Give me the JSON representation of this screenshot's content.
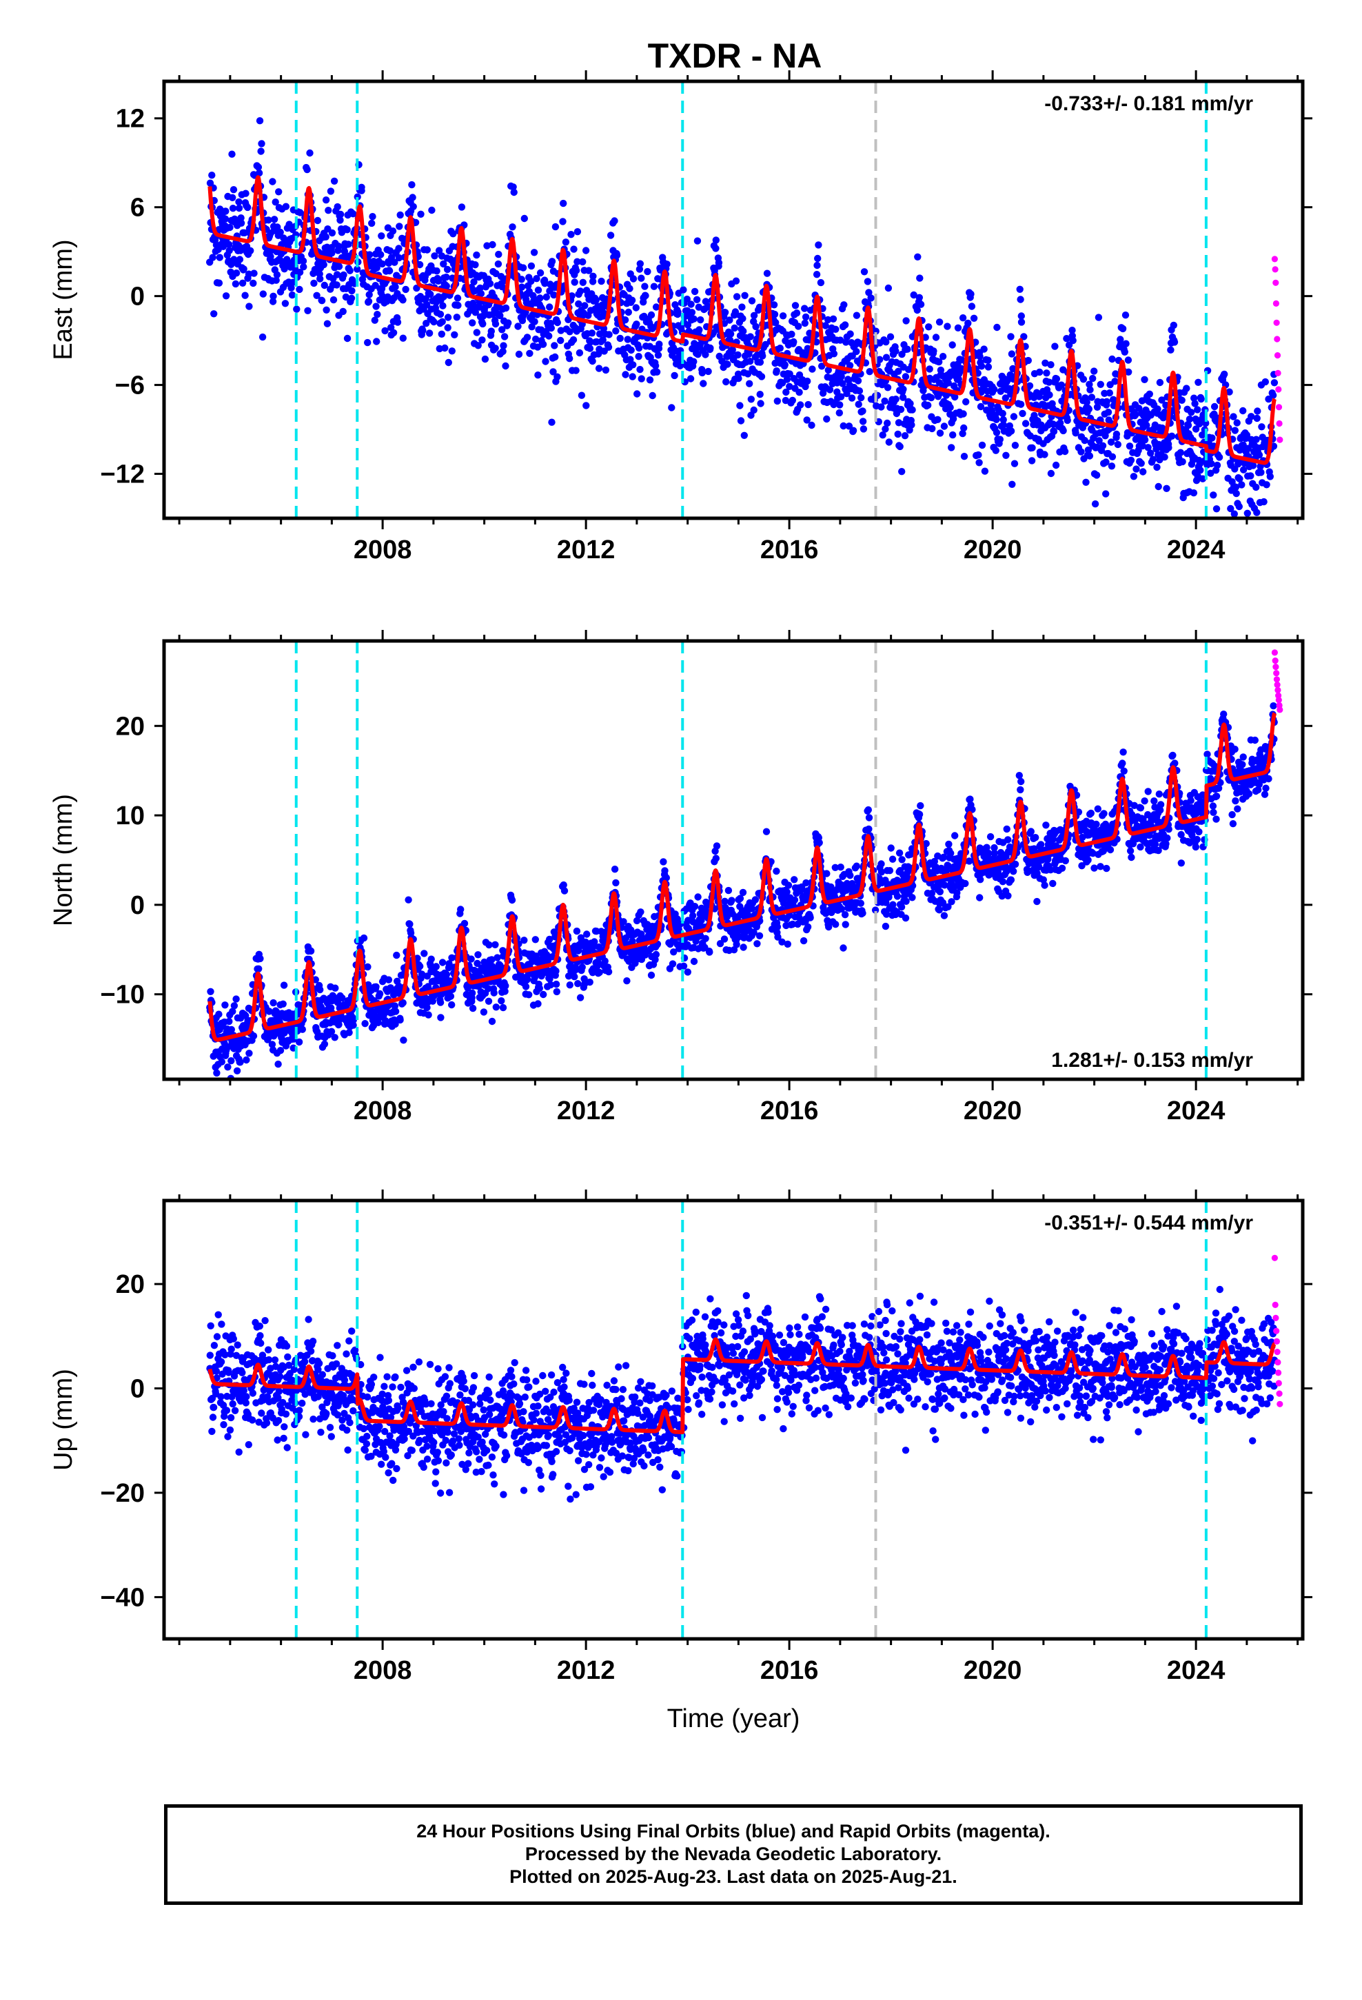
{
  "title": "TXDR - NA",
  "chart_data": [
    {
      "type": "scatter",
      "panel": "east",
      "ylabel": "East (mm)",
      "ylim": [
        -15,
        14.5
      ],
      "yticks": [
        12,
        6,
        0,
        -6,
        -12
      ],
      "xlim": [
        2003.7,
        2026.1
      ],
      "xticks": [
        2008,
        2012,
        2016,
        2020,
        2024
      ],
      "rate_label": "-0.733+/- 0.181 mm/yr",
      "rate_position": "top-right",
      "trend": {
        "start_year": 2004.6,
        "start_value": 5.5,
        "rate": -0.733,
        "seasonal_amplitude": 2.8,
        "peak_phase": 0.55
      },
      "offsets": [
        {
          "year": 2006.3,
          "step": 0.0
        },
        {
          "year": 2007.5,
          "step": -0.5
        },
        {
          "year": 2013.9,
          "step": 0.5
        },
        {
          "year": 2024.2,
          "step": -0.3
        }
      ],
      "scatter_sigma": 1.9,
      "final_range": [
        2004.6,
        2025.55
      ],
      "rapid_range": [
        2025.55,
        2025.65
      ],
      "rapid_values": [
        2.5,
        1.8,
        0.9,
        -0.5,
        -1.8,
        -2.9,
        -4.0,
        -5.2,
        -6.3,
        -7.5,
        -8.6,
        -9.7
      ]
    },
    {
      "type": "scatter",
      "panel": "north",
      "ylabel": "North (mm)",
      "ylim": [
        -19.5,
        29.5
      ],
      "yticks": [
        20,
        10,
        0,
        -10
      ],
      "xlim": [
        2003.7,
        2026.1
      ],
      "xticks": [
        2008,
        2012,
        2016,
        2020,
        2024
      ],
      "rate_label": "1.281+/- 0.153 mm/yr",
      "rate_position": "bottom-right",
      "trend": {
        "start_year": 2004.6,
        "start_value": -13.5,
        "rate": 1.281,
        "seasonal_amplitude": 4.0,
        "peak_phase": 0.55
      },
      "offsets": [
        {
          "year": 2006.3,
          "step": 0.0
        },
        {
          "year": 2007.5,
          "step": 0.0
        },
        {
          "year": 2013.9,
          "step": 0.0
        },
        {
          "year": 2024.2,
          "step": 3.5
        }
      ],
      "scatter_sigma": 1.6,
      "final_range": [
        2004.6,
        2025.55
      ],
      "rapid_range": [
        2025.55,
        2025.65
      ],
      "rapid_values": [
        28.2,
        27.3,
        26.6,
        25.9,
        25.2,
        24.6,
        24.0,
        23.4,
        22.9,
        22.3,
        21.8
      ]
    },
    {
      "type": "scatter",
      "panel": "up",
      "ylabel": "Up (mm)",
      "ylim": [
        -48,
        36
      ],
      "yticks": [
        20,
        0,
        -20,
        -40
      ],
      "xlim": [
        2003.7,
        2026.1
      ],
      "xticks": [
        2008,
        2012,
        2016,
        2020,
        2024
      ],
      "xlabel": "Time (year)",
      "rate_label": "-0.351+/- 0.544 mm/yr",
      "rate_position": "top-right",
      "trend": {
        "start_year": 2004.6,
        "start_value": 2.0,
        "rate": -0.351,
        "seasonal_amplitude": 2.5,
        "peak_phase": 0.55
      },
      "offsets": [
        {
          "year": 2006.3,
          "step": 0.0
        },
        {
          "year": 2007.5,
          "step": -6.0
        },
        {
          "year": 2013.9,
          "step": 14.0
        },
        {
          "year": 2024.2,
          "step": 3.0
        }
      ],
      "scatter_sigma": 4.5,
      "final_range": [
        2004.6,
        2025.55
      ],
      "rapid_range": [
        2025.55,
        2025.65
      ],
      "rapid_values": [
        25.0,
        16.0,
        13.5,
        11.0,
        9.0,
        7.0,
        5.0,
        3.0,
        1.0,
        -1.0,
        -3.0
      ]
    }
  ],
  "vertical_lines": [
    {
      "year": 2006.3,
      "color": "#00e5ee",
      "style": "dashed"
    },
    {
      "year": 2007.5,
      "color": "#00e5ee",
      "style": "dashed"
    },
    {
      "year": 2013.9,
      "color": "#00e5ee",
      "style": "dashed"
    },
    {
      "year": 2017.7,
      "color": "#c0c0c0",
      "style": "dashed"
    },
    {
      "year": 2024.2,
      "color": "#00e5ee",
      "style": "dashed"
    }
  ],
  "colors": {
    "final": "#0000ff",
    "rapid": "#ff00ff",
    "model": "#ff0000",
    "offset_line": "#00e5ee",
    "equipment_line": "#c0c0c0"
  },
  "footer": {
    "line1": "24 Hour Positions Using Final Orbits (blue) and Rapid Orbits (magenta).",
    "line2": "Processed by the Nevada Geodetic Laboratory.",
    "line3": "Plotted on 2025-Aug-23. Last data on 2025-Aug-21."
  }
}
